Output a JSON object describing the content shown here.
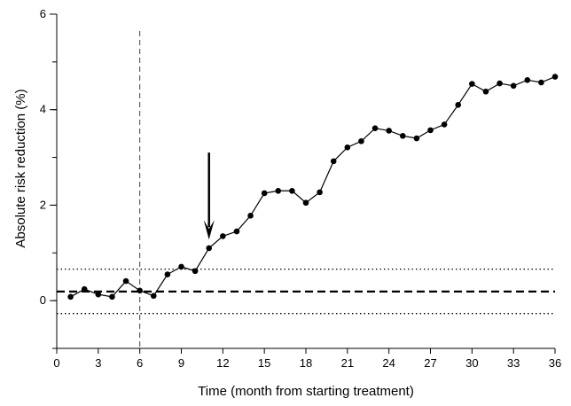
{
  "chart_data": {
    "type": "line",
    "title": "",
    "xlabel": "Time (month from starting treatment)",
    "ylabel": "Absolute risk reduction (%)",
    "xlim": [
      0,
      36
    ],
    "ylim": [
      -1,
      6
    ],
    "xticks": [
      0,
      3,
      6,
      9,
      12,
      15,
      18,
      21,
      24,
      27,
      30,
      33,
      36
    ],
    "xtick_labels": [
      "0",
      "3",
      "6",
      "9",
      "12",
      "15",
      "18",
      "21",
      "24",
      "27",
      "30",
      "33",
      "36"
    ],
    "yticks": [
      0,
      2,
      4,
      6
    ],
    "ytick_labels": [
      "0",
      "2",
      "4",
      "6"
    ],
    "grid": false,
    "series": [
      {
        "x": [
          1,
          2,
          3,
          4,
          5,
          6,
          7,
          8,
          9,
          10,
          11,
          12,
          13,
          14,
          15,
          16,
          17,
          18,
          19,
          20,
          21,
          22,
          23,
          24,
          25,
          26,
          27,
          28,
          29,
          30,
          31,
          32,
          33,
          34,
          35,
          36
        ],
        "values": [
          0.08,
          0.24,
          0.13,
          0.08,
          0.41,
          0.21,
          0.1,
          0.55,
          0.71,
          0.62,
          1.1,
          1.35,
          1.45,
          1.78,
          2.25,
          2.3,
          2.3,
          2.05,
          2.27,
          2.92,
          3.21,
          3.34,
          3.61,
          3.56,
          3.45,
          3.4,
          3.57,
          3.69,
          4.1,
          4.54,
          4.38,
          4.55,
          4.5,
          4.62,
          4.57,
          4.69
        ],
        "color": "#000000",
        "marker": "circle"
      }
    ],
    "reference_lines": {
      "mean": 0.19,
      "upper_limit": 0.66,
      "lower_limit": -0.27,
      "vertical_x": 6
    },
    "annotation_arrow": {
      "x": 11,
      "from_y": 3.1,
      "to_y": 1.28
    }
  }
}
